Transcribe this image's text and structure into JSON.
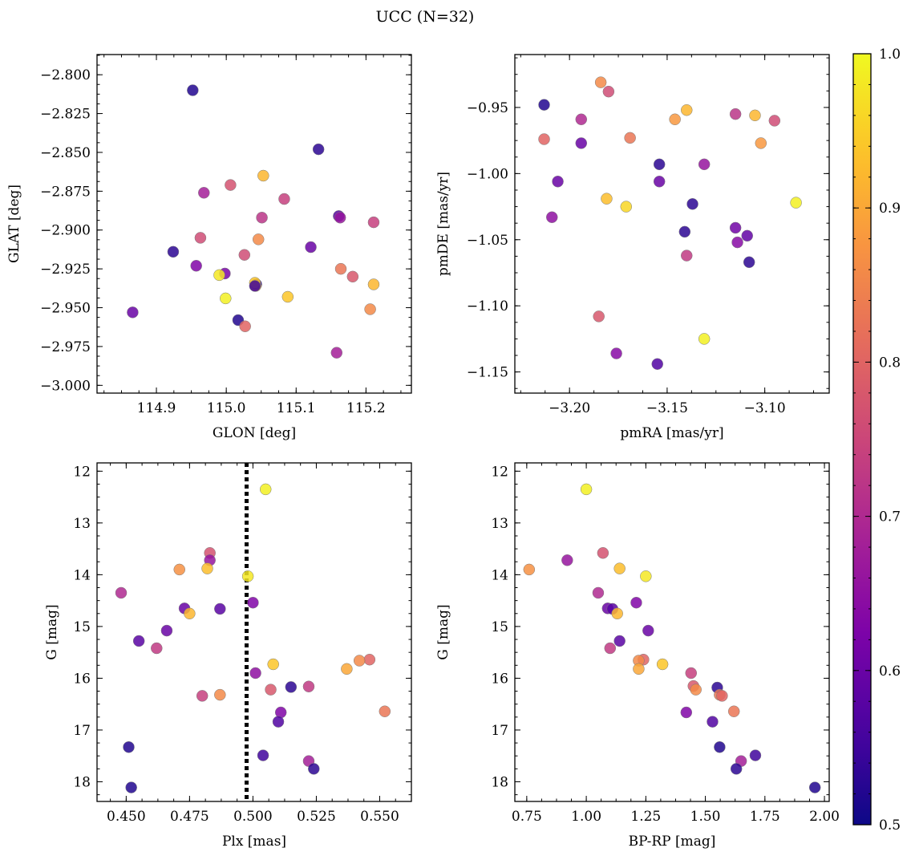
{
  "figure": {
    "title": "UCC (N=32)"
  },
  "colorbar": {
    "min": 0.5,
    "max": 1.0,
    "ticks": [
      0.5,
      0.6,
      0.7,
      0.8,
      0.9,
      1.0
    ],
    "tick_labels": [
      "0.5",
      "0.6",
      "0.7",
      "0.8",
      "0.9",
      "1.0"
    ],
    "colormap": "plasma"
  },
  "chart_data": [
    {
      "type": "scatter",
      "title": "",
      "xlabel": "GLON [deg]",
      "ylabel": "GLAT [deg]",
      "xlim": [
        114.815,
        115.265
      ],
      "ylim": [
        -3.005,
        -2.787
      ],
      "xticks": [
        114.9,
        115.0,
        115.1,
        115.2
      ],
      "xtick_labels": [
        "114.9",
        "115.0",
        "115.1",
        "115.2"
      ],
      "yticks": [
        -2.8,
        -2.825,
        -2.85,
        -2.875,
        -2.9,
        -2.925,
        -2.95,
        -2.975,
        -3.0
      ],
      "ytick_labels": [
        "−2.800",
        "−2.825",
        "−2.850",
        "−2.875",
        "−2.900",
        "−2.925",
        "−2.950",
        "−2.975",
        "−3.000"
      ],
      "x": [
        114.952,
        115.132,
        115.053,
        114.968,
        115.006,
        115.083,
        115.051,
        115.161,
        115.211,
        114.963,
        115.046,
        115.026,
        115.121,
        114.924,
        114.957,
        115.164,
        114.998,
        114.99,
        115.043,
        115.042,
        115.181,
        115.211,
        115.088,
        114.999,
        114.866,
        115.206,
        115.017,
        115.027,
        115.158,
        115.163,
        115.041,
        115.041
      ],
      "y": [
        -2.81,
        -2.848,
        -2.865,
        -2.876,
        -2.871,
        -2.88,
        -2.892,
        -2.891,
        -2.895,
        -2.905,
        -2.906,
        -2.916,
        -2.911,
        -2.914,
        -2.923,
        -2.925,
        -2.928,
        -2.929,
        -2.935,
        -2.936,
        -2.93,
        -2.935,
        -2.943,
        -2.944,
        -2.953,
        -2.951,
        -2.958,
        -2.962,
        -2.979,
        -2.892,
        -2.934,
        -2.936
      ],
      "color_values": [
        0.52,
        0.53,
        0.92,
        0.68,
        0.77,
        0.74,
        0.72,
        0.57,
        0.74,
        0.76,
        0.86,
        0.76,
        0.6,
        0.53,
        0.63,
        0.83,
        0.62,
        0.98,
        0.53,
        0.92,
        0.78,
        0.92,
        0.94,
        0.99,
        0.6,
        0.86,
        0.52,
        0.8,
        0.68,
        0.66,
        0.94,
        0.55
      ]
    },
    {
      "type": "scatter",
      "title": "",
      "xlabel": "pmRA [mas/yr]",
      "ylabel": "pmDE [mas/yr]",
      "xlim": [
        -3.228,
        -3.067
      ],
      "ylim": [
        -1.166,
        -0.91
      ],
      "xticks": [
        -3.2,
        -3.15,
        -3.1
      ],
      "xtick_labels": [
        "−3.20",
        "−3.15",
        "−3.10"
      ],
      "yticks": [
        -0.95,
        -1.0,
        -1.05,
        -1.1,
        -1.15
      ],
      "ytick_labels": [
        "−0.95",
        "−1.00",
        "−1.05",
        "−1.10",
        "−1.15"
      ],
      "x": [
        -3.213,
        -3.184,
        -3.18,
        -3.14,
        -3.146,
        -3.105,
        -3.115,
        -3.095,
        -3.194,
        -3.213,
        -3.194,
        -3.169,
        -3.102,
        -3.154,
        -3.131,
        -3.206,
        -3.154,
        -3.181,
        -3.171,
        -3.137,
        -3.084,
        -3.209,
        -3.115,
        -3.141,
        -3.109,
        -3.114,
        -3.14,
        -3.108,
        -3.185,
        -3.131,
        -3.176,
        -3.155
      ],
      "y": [
        -0.948,
        -0.931,
        -0.938,
        -0.952,
        -0.959,
        -0.956,
        -0.955,
        -0.96,
        -0.959,
        -0.974,
        -0.977,
        -0.973,
        -0.977,
        -0.993,
        -0.993,
        -1.006,
        -1.006,
        -1.019,
        -1.025,
        -1.023,
        -1.022,
        -1.033,
        -1.041,
        -1.044,
        -1.047,
        -1.052,
        -1.062,
        -1.067,
        -1.108,
        -1.125,
        -1.136,
        -1.144
      ],
      "color_values": [
        0.52,
        0.86,
        0.76,
        0.92,
        0.88,
        0.92,
        0.72,
        0.76,
        0.7,
        0.8,
        0.6,
        0.83,
        0.88,
        0.53,
        0.66,
        0.6,
        0.6,
        0.93,
        0.96,
        0.53,
        0.99,
        0.65,
        0.61,
        0.53,
        0.59,
        0.64,
        0.73,
        0.53,
        0.78,
        0.99,
        0.64,
        0.57
      ]
    },
    {
      "type": "scatter",
      "title": "",
      "xlabel": "Plx [mas]",
      "ylabel": "G [mag]",
      "xlim": [
        0.4385,
        0.5625
      ],
      "ylim": [
        18.38,
        11.84
      ],
      "xticks": [
        0.45,
        0.475,
        0.5,
        0.525,
        0.55
      ],
      "xtick_labels": [
        "0.450",
        "0.475",
        "0.500",
        "0.525",
        "0.550"
      ],
      "yticks": [
        12,
        13,
        14,
        15,
        16,
        17,
        18
      ],
      "ytick_labels": [
        "12",
        "13",
        "14",
        "15",
        "16",
        "17",
        "18"
      ],
      "vline": {
        "x": 0.4975,
        "style": "dotted",
        "color": "#000000"
      },
      "x": [
        0.505,
        0.483,
        0.483,
        0.471,
        0.482,
        0.498,
        0.448,
        0.473,
        0.487,
        0.5,
        0.475,
        0.466,
        0.455,
        0.462,
        0.546,
        0.542,
        0.508,
        0.537,
        0.501,
        0.48,
        0.487,
        0.507,
        0.522,
        0.515,
        0.552,
        0.511,
        0.51,
        0.451,
        0.504,
        0.522,
        0.524,
        0.452
      ],
      "y": [
        12.35,
        13.58,
        13.72,
        13.9,
        13.88,
        14.03,
        14.35,
        14.65,
        14.66,
        14.54,
        14.75,
        15.08,
        15.28,
        15.42,
        15.64,
        15.66,
        15.73,
        15.82,
        15.9,
        16.34,
        16.32,
        16.22,
        16.16,
        16.17,
        16.64,
        16.66,
        16.84,
        17.33,
        17.49,
        17.6,
        17.75,
        18.11
      ],
      "color_values": [
        0.99,
        0.77,
        0.66,
        0.87,
        0.93,
        0.98,
        0.7,
        0.6,
        0.58,
        0.63,
        0.92,
        0.6,
        0.58,
        0.73,
        0.8,
        0.86,
        0.94,
        0.9,
        0.65,
        0.74,
        0.86,
        0.78,
        0.73,
        0.53,
        0.83,
        0.63,
        0.57,
        0.52,
        0.55,
        0.68,
        0.53,
        0.52
      ]
    },
    {
      "type": "scatter",
      "title": "",
      "xlabel": "BP-RP [mag]",
      "ylabel": "G [mag]",
      "xlim": [
        0.7,
        2.02
      ],
      "ylim": [
        18.38,
        11.84
      ],
      "xticks": [
        0.75,
        1.0,
        1.25,
        1.5,
        1.75,
        2.0
      ],
      "xtick_labels": [
        "0.75",
        "1.00",
        "1.25",
        "1.50",
        "1.75",
        "2.00"
      ],
      "yticks": [
        12,
        13,
        14,
        15,
        16,
        17,
        18
      ],
      "ytick_labels": [
        "12",
        "13",
        "14",
        "15",
        "16",
        "17",
        "18"
      ],
      "x": [
        1.0,
        1.07,
        0.92,
        0.76,
        1.14,
        1.25,
        1.05,
        1.09,
        1.11,
        1.21,
        1.13,
        1.26,
        1.14,
        1.1,
        1.24,
        1.22,
        1.32,
        1.22,
        1.44,
        1.45,
        1.46,
        1.55,
        1.56,
        1.57,
        1.42,
        1.62,
        1.53,
        1.56,
        1.71,
        1.65,
        1.63,
        1.96
      ],
      "y": [
        12.35,
        13.58,
        13.72,
        13.9,
        13.88,
        14.03,
        14.35,
        14.65,
        14.66,
        14.54,
        14.75,
        15.08,
        15.28,
        15.42,
        15.64,
        15.66,
        15.73,
        15.82,
        15.9,
        16.15,
        16.22,
        16.18,
        16.32,
        16.34,
        16.66,
        16.64,
        16.84,
        17.33,
        17.49,
        17.6,
        17.75,
        18.11
      ],
      "color_values": [
        0.99,
        0.77,
        0.66,
        0.87,
        0.93,
        0.98,
        0.7,
        0.6,
        0.58,
        0.63,
        0.92,
        0.6,
        0.58,
        0.73,
        0.8,
        0.86,
        0.94,
        0.9,
        0.74,
        0.78,
        0.86,
        0.53,
        0.83,
        0.8,
        0.63,
        0.83,
        0.57,
        0.52,
        0.55,
        0.68,
        0.53,
        0.52
      ]
    }
  ]
}
